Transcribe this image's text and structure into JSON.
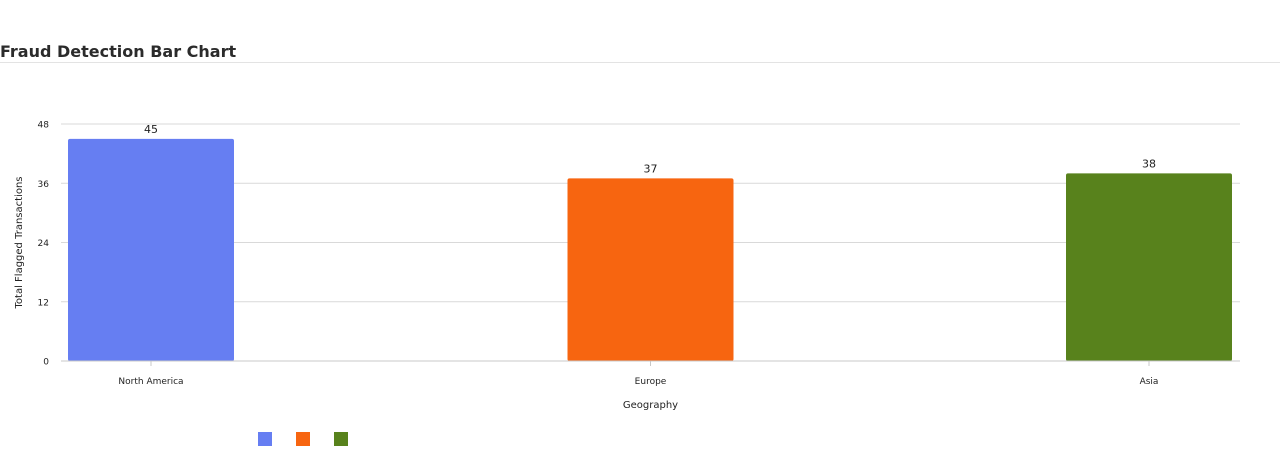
{
  "header": {
    "title": "Fraud Detection Bar Chart"
  },
  "chart_data": {
    "type": "bar",
    "categories": [
      "North America",
      "Europe",
      "Asia"
    ],
    "values": [
      45,
      37,
      38
    ],
    "colors": [
      "#667EF2",
      "#F76510",
      "#58821C"
    ],
    "xlabel": "Geography",
    "ylabel": "Total Flagged Transactions",
    "ylim": [
      0,
      48
    ],
    "yticks": [
      0,
      12,
      24,
      36,
      48
    ],
    "grid": true,
    "data_labels": true,
    "legend_position": "bottom-left",
    "legend": [
      "",
      "",
      ""
    ]
  }
}
